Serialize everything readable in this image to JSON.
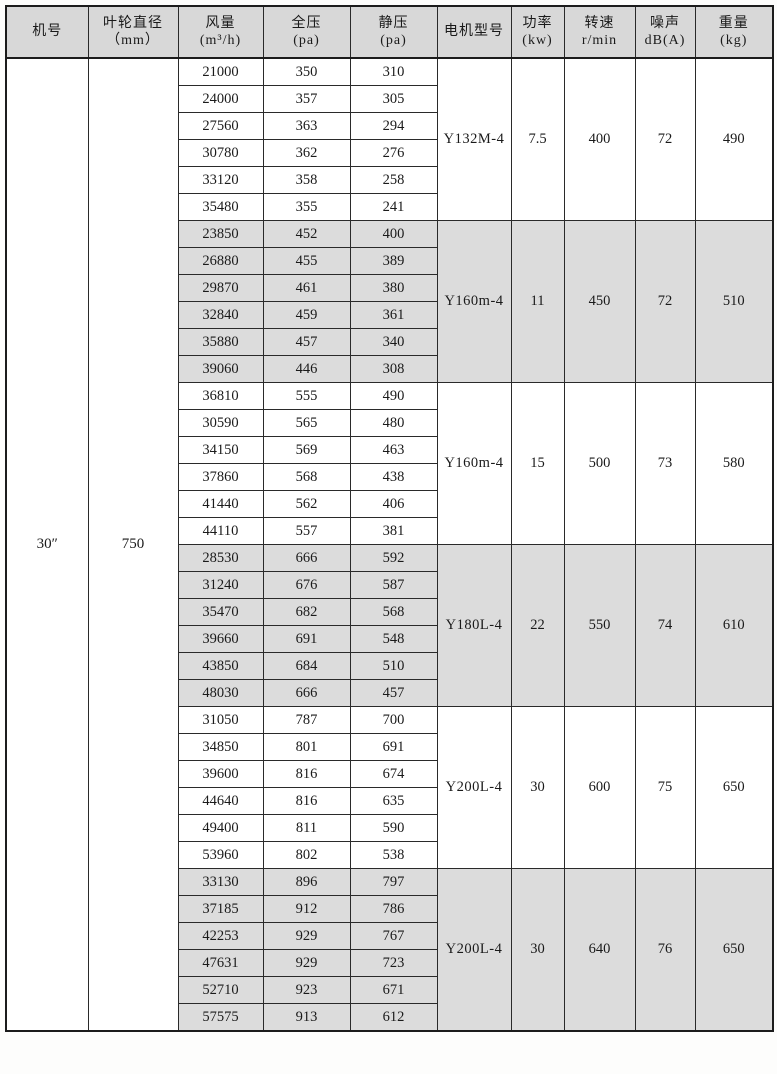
{
  "table": {
    "headers": [
      {
        "id": "machine-no",
        "line1": "机号",
        "line2": ""
      },
      {
        "id": "impeller-diameter",
        "line1": "叶轮直径",
        "line2": "（mm）"
      },
      {
        "id": "air-volume",
        "line1": "风量",
        "line2": "(m³/h)"
      },
      {
        "id": "total-pressure",
        "line1": "全压",
        "line2": "(pa)"
      },
      {
        "id": "static-pressure",
        "line1": "静压",
        "line2": "(pa)"
      },
      {
        "id": "motor-model",
        "line1": "电机型号",
        "line2": ""
      },
      {
        "id": "power",
        "line1": "功率",
        "line2": "(kw)"
      },
      {
        "id": "speed",
        "line1": "转速",
        "line2": "r/min"
      },
      {
        "id": "noise",
        "line1": "噪声",
        "line2": "dB(A)"
      },
      {
        "id": "weight",
        "line1": "重量",
        "line2": "(kg)"
      }
    ],
    "machine_no": "30″",
    "impeller_diameter": "750",
    "groups": [
      {
        "shaded": false,
        "rows": [
          [
            "21000",
            "350",
            "310"
          ],
          [
            "24000",
            "357",
            "305"
          ],
          [
            "27560",
            "363",
            "294"
          ],
          [
            "30780",
            "362",
            "276"
          ],
          [
            "33120",
            "358",
            "258"
          ],
          [
            "35480",
            "355",
            "241"
          ]
        ],
        "motor": "Y132M-4",
        "power": "7.5",
        "speed": "400",
        "noise": "72",
        "weight": "490"
      },
      {
        "shaded": true,
        "rows": [
          [
            "23850",
            "452",
            "400"
          ],
          [
            "26880",
            "455",
            "389"
          ],
          [
            "29870",
            "461",
            "380"
          ],
          [
            "32840",
            "459",
            "361"
          ],
          [
            "35880",
            "457",
            "340"
          ],
          [
            "39060",
            "446",
            "308"
          ]
        ],
        "motor": "Y160m-4",
        "power": "11",
        "speed": "450",
        "noise": "72",
        "weight": "510"
      },
      {
        "shaded": false,
        "rows": [
          [
            "36810",
            "555",
            "490"
          ],
          [
            "30590",
            "565",
            "480"
          ],
          [
            "34150",
            "569",
            "463"
          ],
          [
            "37860",
            "568",
            "438"
          ],
          [
            "41440",
            "562",
            "406"
          ],
          [
            "44110",
            "557",
            "381"
          ]
        ],
        "motor": "Y160m-4",
        "power": "15",
        "speed": "500",
        "noise": "73",
        "weight": "580"
      },
      {
        "shaded": true,
        "rows": [
          [
            "28530",
            "666",
            "592"
          ],
          [
            "31240",
            "676",
            "587"
          ],
          [
            "35470",
            "682",
            "568"
          ],
          [
            "39660",
            "691",
            "548"
          ],
          [
            "43850",
            "684",
            "510"
          ],
          [
            "48030",
            "666",
            "457"
          ]
        ],
        "motor": "Y180L-4",
        "power": "22",
        "speed": "550",
        "noise": "74",
        "weight": "610"
      },
      {
        "shaded": false,
        "rows": [
          [
            "31050",
            "787",
            "700"
          ],
          [
            "34850",
            "801",
            "691"
          ],
          [
            "39600",
            "816",
            "674"
          ],
          [
            "44640",
            "816",
            "635"
          ],
          [
            "49400",
            "811",
            "590"
          ],
          [
            "53960",
            "802",
            "538"
          ]
        ],
        "motor": "Y200L-4",
        "power": "30",
        "speed": "600",
        "noise": "75",
        "weight": "650"
      },
      {
        "shaded": true,
        "rows": [
          [
            "33130",
            "896",
            "797"
          ],
          [
            "37185",
            "912",
            "786"
          ],
          [
            "42253",
            "929",
            "767"
          ],
          [
            "47631",
            "929",
            "723"
          ],
          [
            "52710",
            "923",
            "671"
          ],
          [
            "57575",
            "913",
            "612"
          ]
        ],
        "motor": "Y200L-4",
        "power": "30",
        "speed": "640",
        "noise": "76",
        "weight": "650"
      }
    ]
  },
  "colors": {
    "header_bg": "#d8d8d8",
    "band_bg": "#dcdcdc",
    "border": "#2a2a2a",
    "outer_border": "#1c1c1c"
  }
}
